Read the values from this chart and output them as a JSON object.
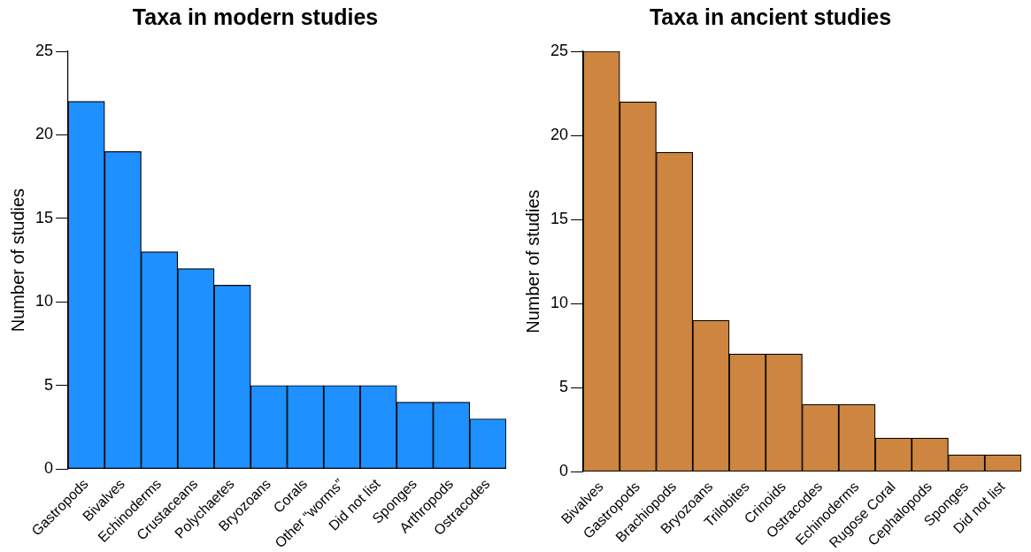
{
  "chart_data": [
    {
      "type": "bar",
      "title": "Taxa in modern studies",
      "ylabel": "Number of studies",
      "categories": [
        "Gastropods",
        "Bivalves",
        "Echinoderms",
        "Crustaceans",
        "Polychaetes",
        "Bryozoans",
        "Corals",
        "Other “worms”",
        "Did not list",
        "Sponges",
        "Arthropods",
        "Ostracodes"
      ],
      "values": [
        22,
        19,
        13,
        12,
        11,
        5,
        5,
        5,
        5,
        4,
        4,
        3
      ],
      "color": "#1e90ff",
      "ylim": [
        0,
        25
      ],
      "yticks": [
        0,
        5,
        10,
        15,
        20,
        25
      ]
    },
    {
      "type": "bar",
      "title": "Taxa in ancient studies",
      "ylabel": "Number of studies",
      "categories": [
        "Bivalves",
        "Gastropods",
        "Brachiopods",
        "Bryozoans",
        "Trilobites",
        "Crinoids",
        "Ostracodes",
        "Echinoderms",
        "Rugose Coral",
        "Cephalopods",
        "Sponges",
        "Did not list"
      ],
      "values": [
        25,
        22,
        19,
        9,
        7,
        7,
        4,
        4,
        2,
        2,
        1,
        1
      ],
      "color": "#cd853f",
      "ylim": [
        0,
        25
      ],
      "yticks": [
        0,
        5,
        10,
        15,
        20,
        25
      ]
    }
  ]
}
